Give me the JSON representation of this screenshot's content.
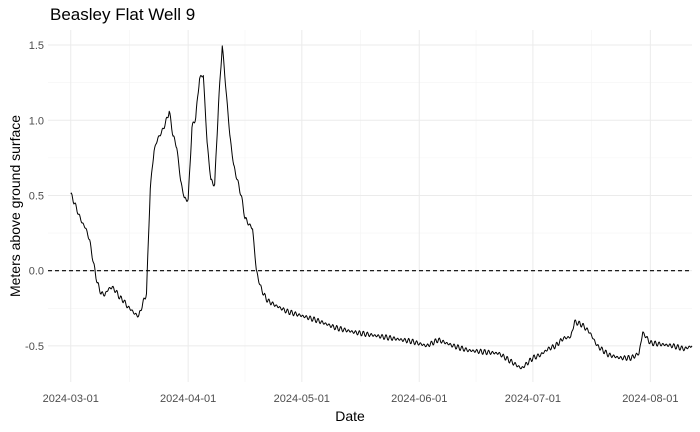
{
  "chart_data": {
    "type": "line",
    "title": "Beasley Flat Well 9",
    "xlabel": "Date",
    "ylabel": "Meters above ground surface",
    "x_ticks": [
      "2024-03-01",
      "2024-04-01",
      "2024-05-01",
      "2024-06-01",
      "2024-07-01",
      "2024-08-01"
    ],
    "y_ticks": [
      "-0.5",
      "0.0",
      "0.5",
      "1.0",
      "1.5"
    ],
    "xlim": [
      "2024-02-24",
      "2024-08-12"
    ],
    "ylim": [
      -0.74,
      1.6
    ],
    "grid": true,
    "reference_line": {
      "y": 0.0,
      "style": "dashed"
    },
    "series": [
      {
        "color": "#000000",
        "points": [
          [
            "2024-03-01",
            0.51
          ],
          [
            "2024-03-02",
            0.45
          ],
          [
            "2024-03-03",
            0.38
          ],
          [
            "2024-03-04",
            0.32
          ],
          [
            "2024-03-05",
            0.28
          ],
          [
            "2024-03-06",
            0.2
          ],
          [
            "2024-03-07",
            0.05
          ],
          [
            "2024-03-08",
            -0.08
          ],
          [
            "2024-03-09",
            -0.15
          ],
          [
            "2024-03-10",
            -0.16
          ],
          [
            "2024-03-11",
            -0.12
          ],
          [
            "2024-03-12",
            -0.11
          ],
          [
            "2024-03-13",
            -0.14
          ],
          [
            "2024-03-14",
            -0.18
          ],
          [
            "2024-03-15",
            -0.2
          ],
          [
            "2024-03-16",
            -0.24
          ],
          [
            "2024-03-17",
            -0.26
          ],
          [
            "2024-03-18",
            -0.29
          ],
          [
            "2024-03-19",
            -0.3
          ],
          [
            "2024-03-20",
            -0.22
          ],
          [
            "2024-03-21",
            -0.15
          ],
          [
            "2024-03-22",
            0.55
          ],
          [
            "2024-03-23",
            0.8
          ],
          [
            "2024-03-24",
            0.88
          ],
          [
            "2024-03-25",
            0.92
          ],
          [
            "2024-03-26",
            0.98
          ],
          [
            "2024-03-27",
            1.06
          ],
          [
            "2024-03-28",
            0.9
          ],
          [
            "2024-03-29",
            0.82
          ],
          [
            "2024-03-30",
            0.6
          ],
          [
            "2024-03-31",
            0.48
          ],
          [
            "2024-04-01",
            0.47
          ],
          [
            "2024-04-02",
            0.95
          ],
          [
            "2024-04-03",
            1.02
          ],
          [
            "2024-04-04",
            1.28
          ],
          [
            "2024-04-05",
            1.3
          ],
          [
            "2024-04-06",
            0.85
          ],
          [
            "2024-04-07",
            0.6
          ],
          [
            "2024-04-08",
            0.57
          ],
          [
            "2024-04-09",
            1.1
          ],
          [
            "2024-04-10",
            1.5
          ],
          [
            "2024-04-11",
            1.2
          ],
          [
            "2024-04-12",
            0.9
          ],
          [
            "2024-04-13",
            0.7
          ],
          [
            "2024-04-14",
            0.6
          ],
          [
            "2024-04-15",
            0.5
          ],
          [
            "2024-04-16",
            0.35
          ],
          [
            "2024-04-17",
            0.31
          ],
          [
            "2024-04-18",
            0.28
          ],
          [
            "2024-04-19",
            0.0
          ],
          [
            "2024-04-20",
            -0.1
          ],
          [
            "2024-04-21",
            -0.16
          ],
          [
            "2024-04-22",
            -0.2
          ],
          [
            "2024-04-24",
            -0.23
          ],
          [
            "2024-04-27",
            -0.27
          ],
          [
            "2024-05-01",
            -0.3
          ],
          [
            "2024-05-05",
            -0.33
          ],
          [
            "2024-05-10",
            -0.38
          ],
          [
            "2024-05-15",
            -0.41
          ],
          [
            "2024-05-20",
            -0.43
          ],
          [
            "2024-05-25",
            -0.45
          ],
          [
            "2024-05-30",
            -0.47
          ],
          [
            "2024-06-03",
            -0.5
          ],
          [
            "2024-06-06",
            -0.46
          ],
          [
            "2024-06-10",
            -0.5
          ],
          [
            "2024-06-14",
            -0.53
          ],
          [
            "2024-06-18",
            -0.54
          ],
          [
            "2024-06-22",
            -0.55
          ],
          [
            "2024-06-25",
            -0.6
          ],
          [
            "2024-06-28",
            -0.65
          ],
          [
            "2024-07-01",
            -0.58
          ],
          [
            "2024-07-03",
            -0.56
          ],
          [
            "2024-07-05",
            -0.52
          ],
          [
            "2024-07-07",
            -0.5
          ],
          [
            "2024-07-09",
            -0.45
          ],
          [
            "2024-07-11",
            -0.44
          ],
          [
            "2024-07-12",
            -0.34
          ],
          [
            "2024-07-14",
            -0.36
          ],
          [
            "2024-07-16",
            -0.41
          ],
          [
            "2024-07-18",
            -0.5
          ],
          [
            "2024-07-21",
            -0.56
          ],
          [
            "2024-07-24",
            -0.58
          ],
          [
            "2024-07-27",
            -0.58
          ],
          [
            "2024-07-29",
            -0.55
          ],
          [
            "2024-07-30",
            -0.41
          ],
          [
            "2024-08-01",
            -0.48
          ],
          [
            "2024-08-04",
            -0.49
          ],
          [
            "2024-08-07",
            -0.5
          ],
          [
            "2024-08-10",
            -0.52
          ],
          [
            "2024-08-12",
            -0.5
          ]
        ]
      }
    ]
  }
}
